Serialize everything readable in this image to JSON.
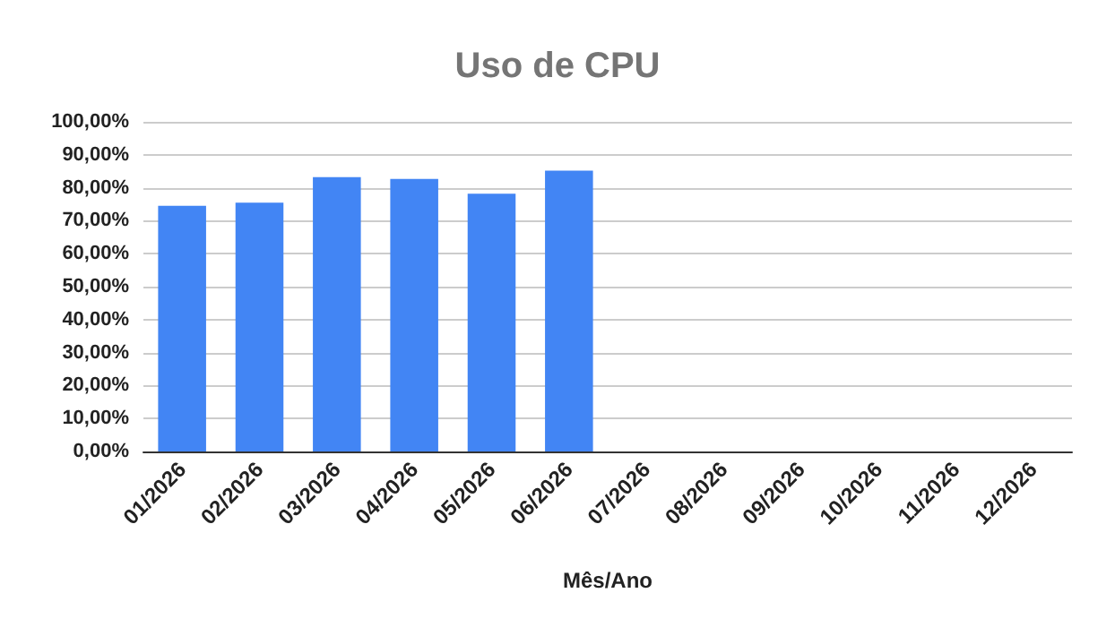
{
  "chart_data": {
    "type": "bar",
    "title": "Uso de CPU",
    "xlabel": "Mês/Ano",
    "categories": [
      "01/2026",
      "02/2026",
      "03/2026",
      "04/2026",
      "05/2026",
      "06/2026",
      "07/2026",
      "08/2026",
      "09/2026",
      "10/2026",
      "11/2026",
      "12/2026"
    ],
    "values": [
      74.5,
      75.5,
      83.2,
      82.7,
      78.2,
      85.2,
      null,
      null,
      null,
      null,
      null,
      null
    ],
    "color": "#4285f4",
    "ylim": [
      0,
      100
    ],
    "yticks": [
      {
        "value": 0,
        "label": "0,00%"
      },
      {
        "value": 10,
        "label": "10,00%"
      },
      {
        "value": 20,
        "label": "20,00%"
      },
      {
        "value": 30,
        "label": "30,00%"
      },
      {
        "value": 40,
        "label": "40,00%"
      },
      {
        "value": 50,
        "label": "50,00%"
      },
      {
        "value": 60,
        "label": "60,00%"
      },
      {
        "value": 70,
        "label": "70,00%"
      },
      {
        "value": 80,
        "label": "80,00%"
      },
      {
        "value": 90,
        "label": "90,00%"
      },
      {
        "value": 100,
        "label": "100,00%"
      }
    ],
    "grid": "y"
  }
}
